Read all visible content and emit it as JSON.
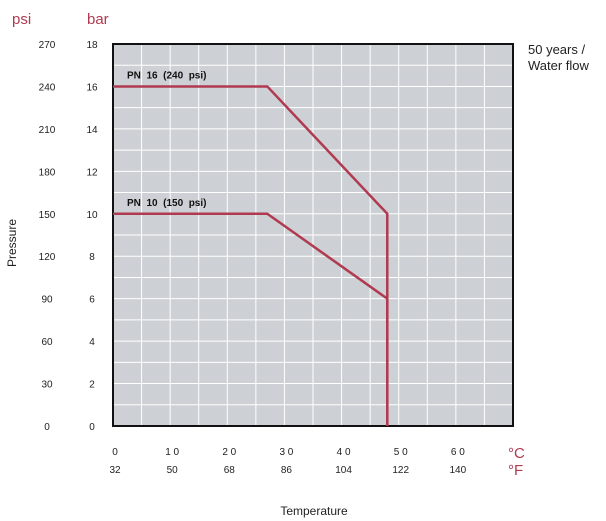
{
  "chart_data": {
    "type": "line",
    "title": "",
    "note_lines": [
      "50 years /",
      "Water flow"
    ],
    "xlabel": "Temperature",
    "ylabel": "Pressure",
    "x_unit_primary": "°C",
    "x_unit_secondary": "°F",
    "y_unit_primary": "bar",
    "y_unit_secondary": "psi",
    "xlim": [
      0,
      70
    ],
    "ylim": [
      0,
      18
    ],
    "x_ticks": [
      {
        "value": 0,
        "label": "0",
        "label_f": "32"
      },
      {
        "value": 10,
        "label": "1 0",
        "label_f": "50"
      },
      {
        "value": 20,
        "label": "2 0",
        "label_f": "68"
      },
      {
        "value": 30,
        "label": "3 0",
        "label_f": "86"
      },
      {
        "value": 40,
        "label": "4 0",
        "label_f": "104"
      },
      {
        "value": 50,
        "label": "5 0",
        "label_f": "122"
      },
      {
        "value": 60,
        "label": "6 0",
        "label_f": "140"
      }
    ],
    "y_ticks": [
      {
        "value": 0,
        "label": "0",
        "label_psi": "0"
      },
      {
        "value": 2,
        "label": "2",
        "label_psi": "30"
      },
      {
        "value": 4,
        "label": "4",
        "label_psi": "60"
      },
      {
        "value": 6,
        "label": "6",
        "label_psi": "90"
      },
      {
        "value": 8,
        "label": "8",
        "label_psi": "120"
      },
      {
        "value": 10,
        "label": "10",
        "label_psi": "150"
      },
      {
        "value": 12,
        "label": "12",
        "label_psi": "180"
      },
      {
        "value": 14,
        "label": "14",
        "label_psi": "210"
      },
      {
        "value": 16,
        "label": "16",
        "label_psi": "240"
      },
      {
        "value": 18,
        "label": "18",
        "label_psi": "270"
      }
    ],
    "grid": true,
    "series": [
      {
        "name": "PN  16  (240  psi)",
        "color": "#b03a50",
        "points": [
          [
            0,
            16
          ],
          [
            27,
            16
          ],
          [
            48,
            10
          ],
          [
            48,
            0
          ]
        ]
      },
      {
        "name": "PN  10  (150  psi)",
        "color": "#b03a50",
        "points": [
          [
            0,
            10
          ],
          [
            27,
            10
          ],
          [
            48,
            6
          ],
          [
            48,
            0
          ]
        ]
      }
    ],
    "colors": {
      "plot_background": "#cdd0d4",
      "grid": "#ffffff",
      "accent": "#b03a50",
      "text": "#222222"
    }
  }
}
